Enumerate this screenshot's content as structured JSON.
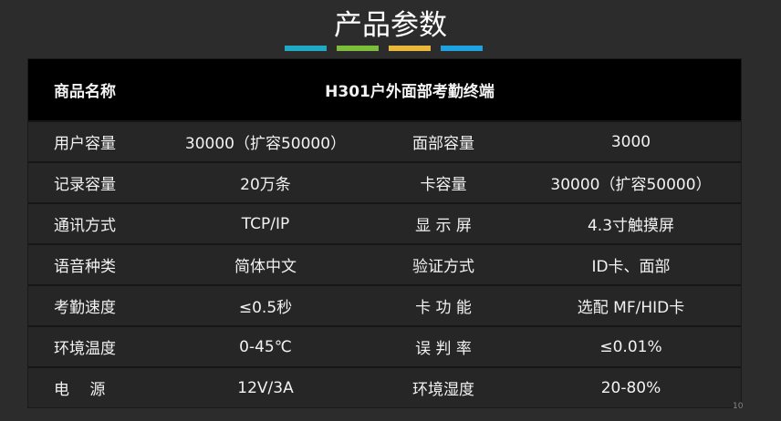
{
  "title": "产品参数",
  "accent_colors": [
    "#1fa9c4",
    "#7cbd3a",
    "#e9b73a",
    "#1fa3e0"
  ],
  "product": {
    "label": "商品名称",
    "value": "H301户外面部考勤终端"
  },
  "rows": [
    {
      "k1": "用户容量",
      "v1": "30000（扩容50000）",
      "k2": "面部容量",
      "v2": "3000"
    },
    {
      "k1": "记录容量",
      "v1": "20万条",
      "k2": "卡容量",
      "v2": "30000（扩容50000）"
    },
    {
      "k1": "通讯方式",
      "v1": "TCP/IP",
      "k2": "显 示 屏",
      "v2": "4.3寸触摸屏"
    },
    {
      "k1": "语音种类",
      "v1": "简体中文",
      "k2": "验证方式",
      "v2": "ID卡、面部"
    },
    {
      "k1": "考勤速度",
      "v1": "≤0.5秒",
      "k2": "卡 功 能",
      "v2": "选配 MF/HID卡"
    },
    {
      "k1": "环境温度",
      "v1": "0-45℃",
      "k2": "误 判 率",
      "v2": "≤0.01%"
    },
    {
      "k1": "电　 源",
      "v1": "12V/3A",
      "k2": "环境湿度",
      "v2": "20-80%"
    }
  ],
  "page_number": "10"
}
